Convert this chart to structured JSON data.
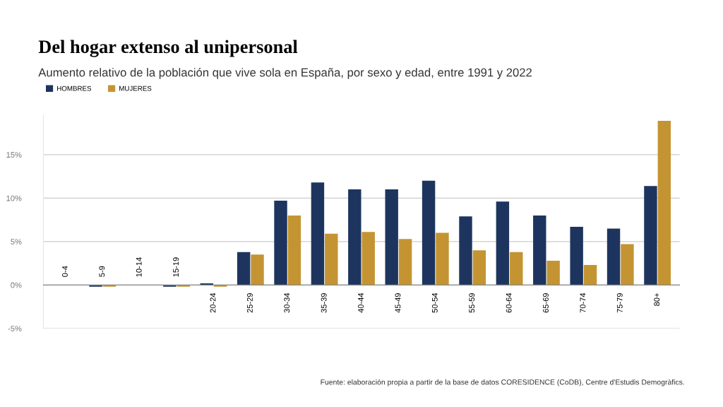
{
  "chart_data": {
    "type": "bar",
    "title": "Del hogar extenso al unipersonal",
    "subtitle": "Aumento relativo de la población que vive sola en España, por sexo y edad, entre 1991 y 2022",
    "categories": [
      "0-4",
      "5-9",
      "10-14",
      "15-19",
      "20-24",
      "25-29",
      "30-34",
      "35-39",
      "40-44",
      "45-49",
      "50-54",
      "55-59",
      "60-64",
      "65-69",
      "70-74",
      "75-79",
      "80+"
    ],
    "series": [
      {
        "name": "HOMBRES",
        "color": "#1d355e",
        "values": [
          0,
          -0.2,
          -0.05,
          -0.2,
          0.2,
          3.8,
          9.7,
          11.8,
          11.0,
          11.0,
          12.0,
          7.9,
          9.6,
          8.0,
          6.7,
          6.5,
          11.4
        ]
      },
      {
        "name": "MUJERES",
        "color": "#c49433",
        "values": [
          0,
          -0.2,
          -0.05,
          -0.2,
          -0.2,
          3.5,
          8.0,
          5.9,
          6.1,
          5.3,
          6.0,
          4.0,
          3.8,
          2.8,
          2.3,
          4.7,
          18.9
        ]
      }
    ],
    "ylim": [
      -5,
      19.5
    ],
    "yticks": [
      {
        "value": -5,
        "label": "-5%"
      },
      {
        "value": 0,
        "label": "0%"
      },
      {
        "value": 5,
        "label": "5%"
      },
      {
        "value": 10,
        "label": "10%"
      },
      {
        "value": 15,
        "label": "15%"
      }
    ],
    "grid": "y",
    "legend": "top left",
    "annotations": [
      "Fuente: elaboración propia a partir de la base de datos CORESIDENCE (CoDB), Centre d'Estudis Demogràfics."
    ]
  }
}
